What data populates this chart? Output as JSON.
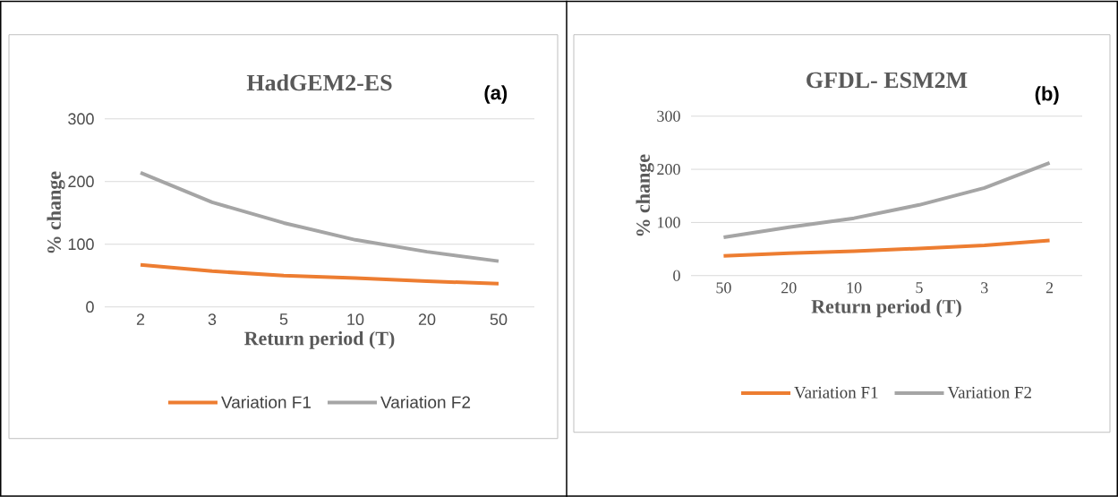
{
  "chart_data": [
    {
      "type": "line",
      "title": "HadGEM2-ES",
      "xlabel": "Return period (T)",
      "ylabel": "% change",
      "annotations": [
        "(a)"
      ],
      "categories": [
        "2",
        "3",
        "5",
        "10",
        "20",
        "50"
      ],
      "series": [
        {
          "name": "Variation F1",
          "color": "#ed7d31",
          "values": [
            67,
            57,
            50,
            46,
            41,
            37
          ]
        },
        {
          "name": "Variation F2",
          "color": "#a5a5a5",
          "values": [
            214,
            167,
            134,
            107,
            88,
            73
          ]
        }
      ],
      "ylim": [
        0,
        300
      ],
      "yticks": [
        0,
        100,
        200,
        300
      ],
      "grid": "y",
      "legend": "bottom"
    },
    {
      "type": "line",
      "title": "GFDL- ESM2M",
      "xlabel": "Return period (T)",
      "ylabel": "% change",
      "annotations": [
        "(b)"
      ],
      "categories": [
        "50",
        "20",
        "10",
        "5",
        "3",
        "2"
      ],
      "series": [
        {
          "name": "Variation  F1",
          "color": "#ed7d31",
          "values": [
            37,
            42,
            46,
            51,
            57,
            66
          ]
        },
        {
          "name": "Variation F2",
          "color": "#a5a5a5",
          "values": [
            72,
            91,
            108,
            133,
            165,
            212
          ]
        }
      ],
      "ylim": [
        0,
        300
      ],
      "yticks": [
        0,
        100,
        200,
        300
      ],
      "grid": "y",
      "legend": "bottom"
    }
  ]
}
